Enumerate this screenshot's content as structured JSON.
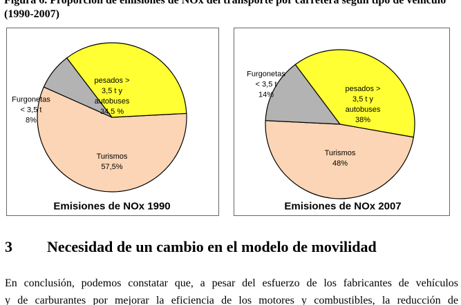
{
  "document": {
    "caption": "Figura 6. Proporción de emisiones de NOx del transporte por carretera según tipo de vehículo (1990-2007)",
    "section_number": "3",
    "section_title": "Necesidad de un cambio en el modelo de movilidad",
    "paragraph": [
      "En conclusión, podemos constatar que, a pesar del esfuerzo de los fabricantes de vehículos",
      "y de carburantes por mejorar la eficiencia de los motores y combustibles, la reducción de"
    ]
  },
  "chart_data": [
    {
      "type": "pie",
      "title": "Emisiones de NOx 1990",
      "categories": [
        "Turismos",
        "Furgonetas < 3,5 t",
        "pesados > 3,5 t y autobuses"
      ],
      "values": [
        57.5,
        8,
        34.5
      ],
      "value_labels": [
        "57,5%",
        "8%",
        "34,5 %"
      ],
      "colors": [
        "#fbd5b5",
        "#b3b3b3",
        "#ffff33"
      ]
    },
    {
      "type": "pie",
      "title": "Emisiones de NOx 2007",
      "categories": [
        "Turismos",
        "Furgonetas < 3,5 t",
        "pesados > 3,5 t y autobuses"
      ],
      "values": [
        48,
        14,
        38
      ],
      "value_labels": [
        "48%",
        "14%",
        "38%"
      ],
      "colors": [
        "#fbd5b5",
        "#b3b3b3",
        "#ffff33"
      ]
    }
  ]
}
